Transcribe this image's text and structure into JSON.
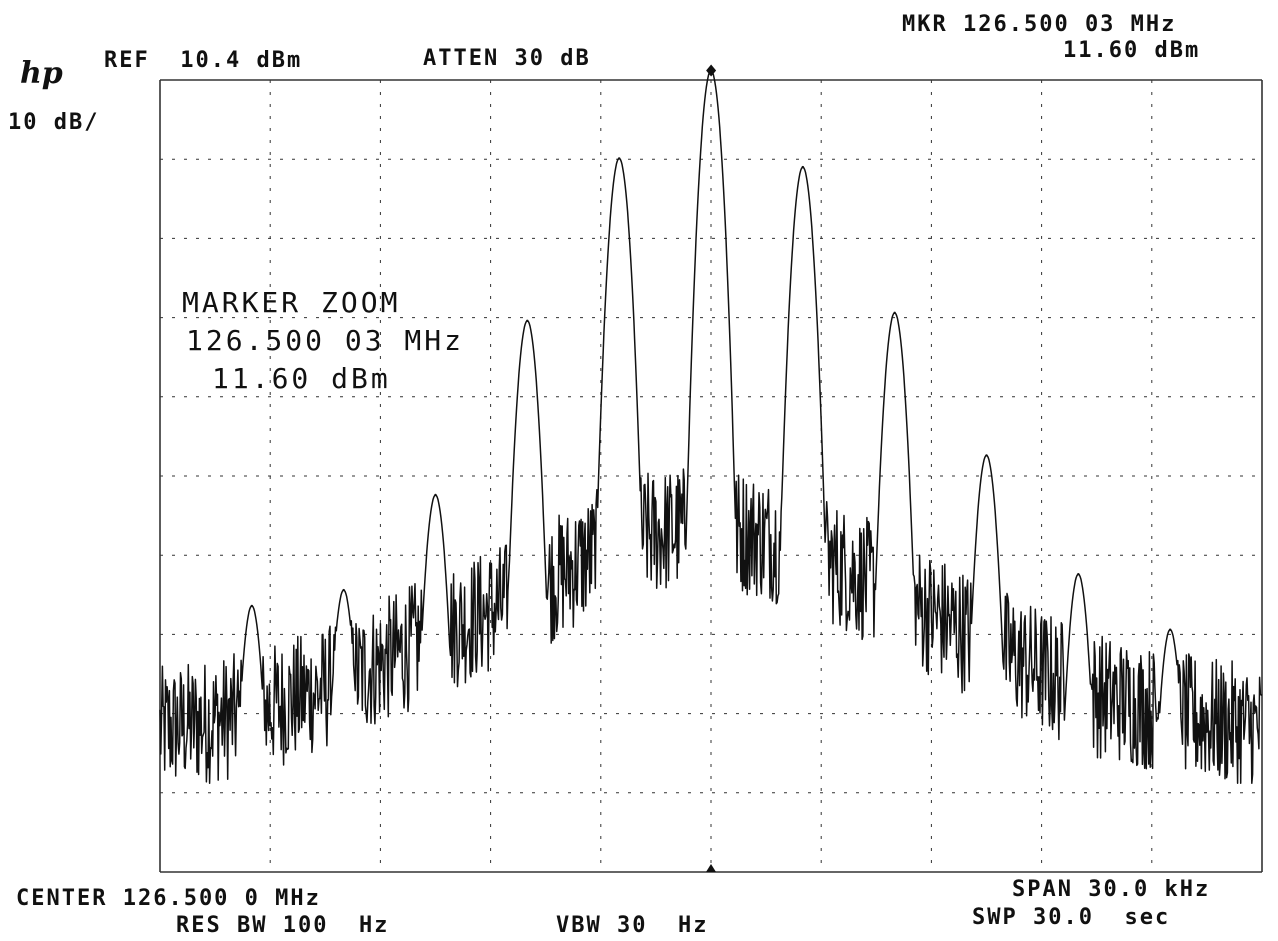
{
  "header": {
    "logo": "hp",
    "ref_level": "REF  10.4 dBm",
    "attenuation": "ATTEN 30 dB",
    "scale": "10 dB/",
    "marker_freq": "MKR 126.500 03 MHz",
    "marker_level": "11.60 dBm"
  },
  "annotation": {
    "title": "MARKER ZOOM",
    "freq": "126.500 03 MHz",
    "level": "11.60 dBm"
  },
  "footer": {
    "center": "CENTER 126.500 0 MHz",
    "res_bw": "RES BW 100  Hz",
    "vbw": "VBW 30  Hz",
    "span": "SPAN 30.0 kHz",
    "sweep": "SWP 30.0  sec"
  },
  "chart_data": {
    "type": "line",
    "title": "",
    "xlabel": "",
    "ylabel": "",
    "x_unit": "kHz offset from 126.500 0 MHz",
    "y_unit": "dBm",
    "xlim": [
      -15,
      15
    ],
    "ylim": [
      -89.6,
      10.4
    ],
    "grid": true,
    "grid_divisions": {
      "x": 10,
      "y": 10
    },
    "marker": {
      "x_khz": 0.003,
      "y_dbm": 11.6
    },
    "peaks": [
      {
        "x_khz": -12.5,
        "y_dbm": -56
      },
      {
        "x_khz": -10.0,
        "y_dbm": -54
      },
      {
        "x_khz": -7.5,
        "y_dbm": -42
      },
      {
        "x_khz": -5.0,
        "y_dbm": -20
      },
      {
        "x_khz": -2.5,
        "y_dbm": 0.5
      },
      {
        "x_khz": 0.0,
        "y_dbm": 11.6
      },
      {
        "x_khz": 2.5,
        "y_dbm": -0.6
      },
      {
        "x_khz": 5.0,
        "y_dbm": -19
      },
      {
        "x_khz": 7.5,
        "y_dbm": -37
      },
      {
        "x_khz": 10.0,
        "y_dbm": -52
      },
      {
        "x_khz": 12.5,
        "y_dbm": -59
      }
    ],
    "noise_floor": [
      {
        "x_khz": -15.0,
        "y_dbm": -74
      },
      {
        "x_khz": -12.5,
        "y_dbm": -72
      },
      {
        "x_khz": -10.0,
        "y_dbm": -68
      },
      {
        "x_khz": -7.5,
        "y_dbm": -62
      },
      {
        "x_khz": -5.0,
        "y_dbm": -57
      },
      {
        "x_khz": -2.5,
        "y_dbm": -50
      },
      {
        "x_khz": 0.0,
        "y_dbm": -48
      },
      {
        "x_khz": 2.5,
        "y_dbm": -51
      },
      {
        "x_khz": 5.0,
        "y_dbm": -57
      },
      {
        "x_khz": 7.5,
        "y_dbm": -63
      },
      {
        "x_khz": 10.0,
        "y_dbm": -69
      },
      {
        "x_khz": 12.5,
        "y_dbm": -72
      },
      {
        "x_khz": 15.0,
        "y_dbm": -74
      }
    ]
  }
}
